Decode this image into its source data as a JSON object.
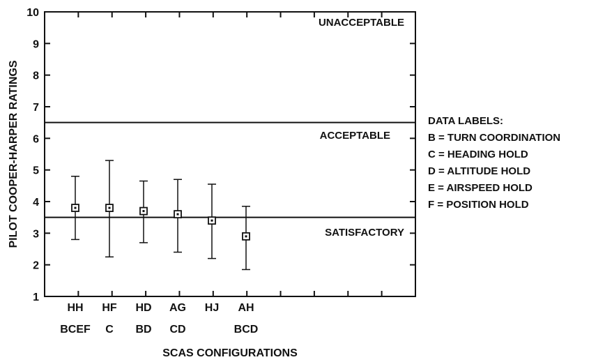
{
  "chart_data": {
    "type": "errorbar",
    "xlabel": "SCAS CONFIGURATIONS",
    "ylabel": "PILOT COOPER-HARPER RATINGS",
    "ylim": [
      1,
      10
    ],
    "yticks": [
      "1",
      "2",
      "3",
      "4",
      "5",
      "6",
      "7",
      "8",
      "9",
      "10"
    ],
    "categories": [
      {
        "name": "HH",
        "labels": "BCEF"
      },
      {
        "name": "HF",
        "labels": "C"
      },
      {
        "name": "HD",
        "labels": "BD"
      },
      {
        "name": "AG",
        "labels": "CD"
      },
      {
        "name": "HJ",
        "labels": ""
      },
      {
        "name": "AH",
        "labels": "BCD"
      }
    ],
    "series": [
      {
        "mean": [
          3.8,
          3.8,
          3.7,
          3.6,
          3.4,
          2.9
        ],
        "low": [
          2.8,
          2.25,
          2.7,
          2.4,
          2.2,
          1.85
        ],
        "high": [
          4.8,
          5.3,
          4.65,
          4.7,
          4.55,
          3.85
        ]
      }
    ],
    "thresholds": [
      {
        "value": 6.5,
        "label_above": "UNACCEPTABLE",
        "label_below": "ACCEPTABLE"
      },
      {
        "value": 3.5,
        "label_below": "SATISFACTORY"
      }
    ],
    "legend": {
      "title": "DATA LABELS:",
      "items": [
        "B = TURN COORDINATION",
        "C = HEADING HOLD",
        "D = ALTITUDE HOLD",
        "E = AIRSPEED HOLD",
        "F = POSITION HOLD"
      ]
    }
  }
}
